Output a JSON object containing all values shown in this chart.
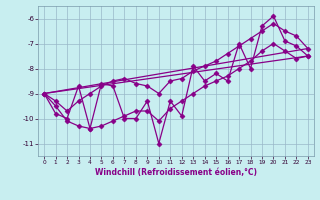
{
  "x": [
    0,
    1,
    2,
    3,
    4,
    5,
    6,
    7,
    8,
    9,
    10,
    11,
    12,
    13,
    14,
    15,
    16,
    17,
    18,
    19,
    20,
    21,
    22,
    23
  ],
  "y_main": [
    -9.0,
    -9.8,
    -10.0,
    -8.7,
    -10.4,
    -8.6,
    -8.7,
    -10.0,
    -10.0,
    -9.3,
    -11.0,
    -9.3,
    -9.9,
    -7.9,
    -8.5,
    -8.2,
    -8.5,
    -7.0,
    -8.0,
    -6.3,
    -5.9,
    -6.9,
    -7.1,
    -7.5
  ],
  "y_upper": [
    -9.0,
    -9.3,
    -9.7,
    -9.3,
    -9.0,
    -8.7,
    -8.5,
    -8.4,
    -8.6,
    -8.7,
    -9.0,
    -8.5,
    -8.4,
    -8.1,
    -7.9,
    -7.7,
    -7.4,
    -7.1,
    -6.8,
    -6.5,
    -6.2,
    -6.5,
    -6.7,
    -7.2
  ],
  "y_lower": [
    -9.0,
    -9.5,
    -10.1,
    -10.3,
    -10.4,
    -10.3,
    -10.1,
    -9.9,
    -9.7,
    -9.7,
    -10.1,
    -9.6,
    -9.3,
    -9.0,
    -8.7,
    -8.5,
    -8.3,
    -8.0,
    -7.7,
    -7.3,
    -7.0,
    -7.3,
    -7.6,
    -7.5
  ],
  "bg_color": "#c8eef0",
  "grid_color": "#9ab8c8",
  "line_color": "#880088",
  "ylabel_vals": [
    -6,
    -7,
    -8,
    -9,
    -10,
    -11
  ],
  "xlabel": "Windchill (Refroidissement éolien,°C)",
  "xlim": [
    -0.5,
    23.5
  ],
  "ylim": [
    -11.5,
    -5.5
  ],
  "title": ""
}
